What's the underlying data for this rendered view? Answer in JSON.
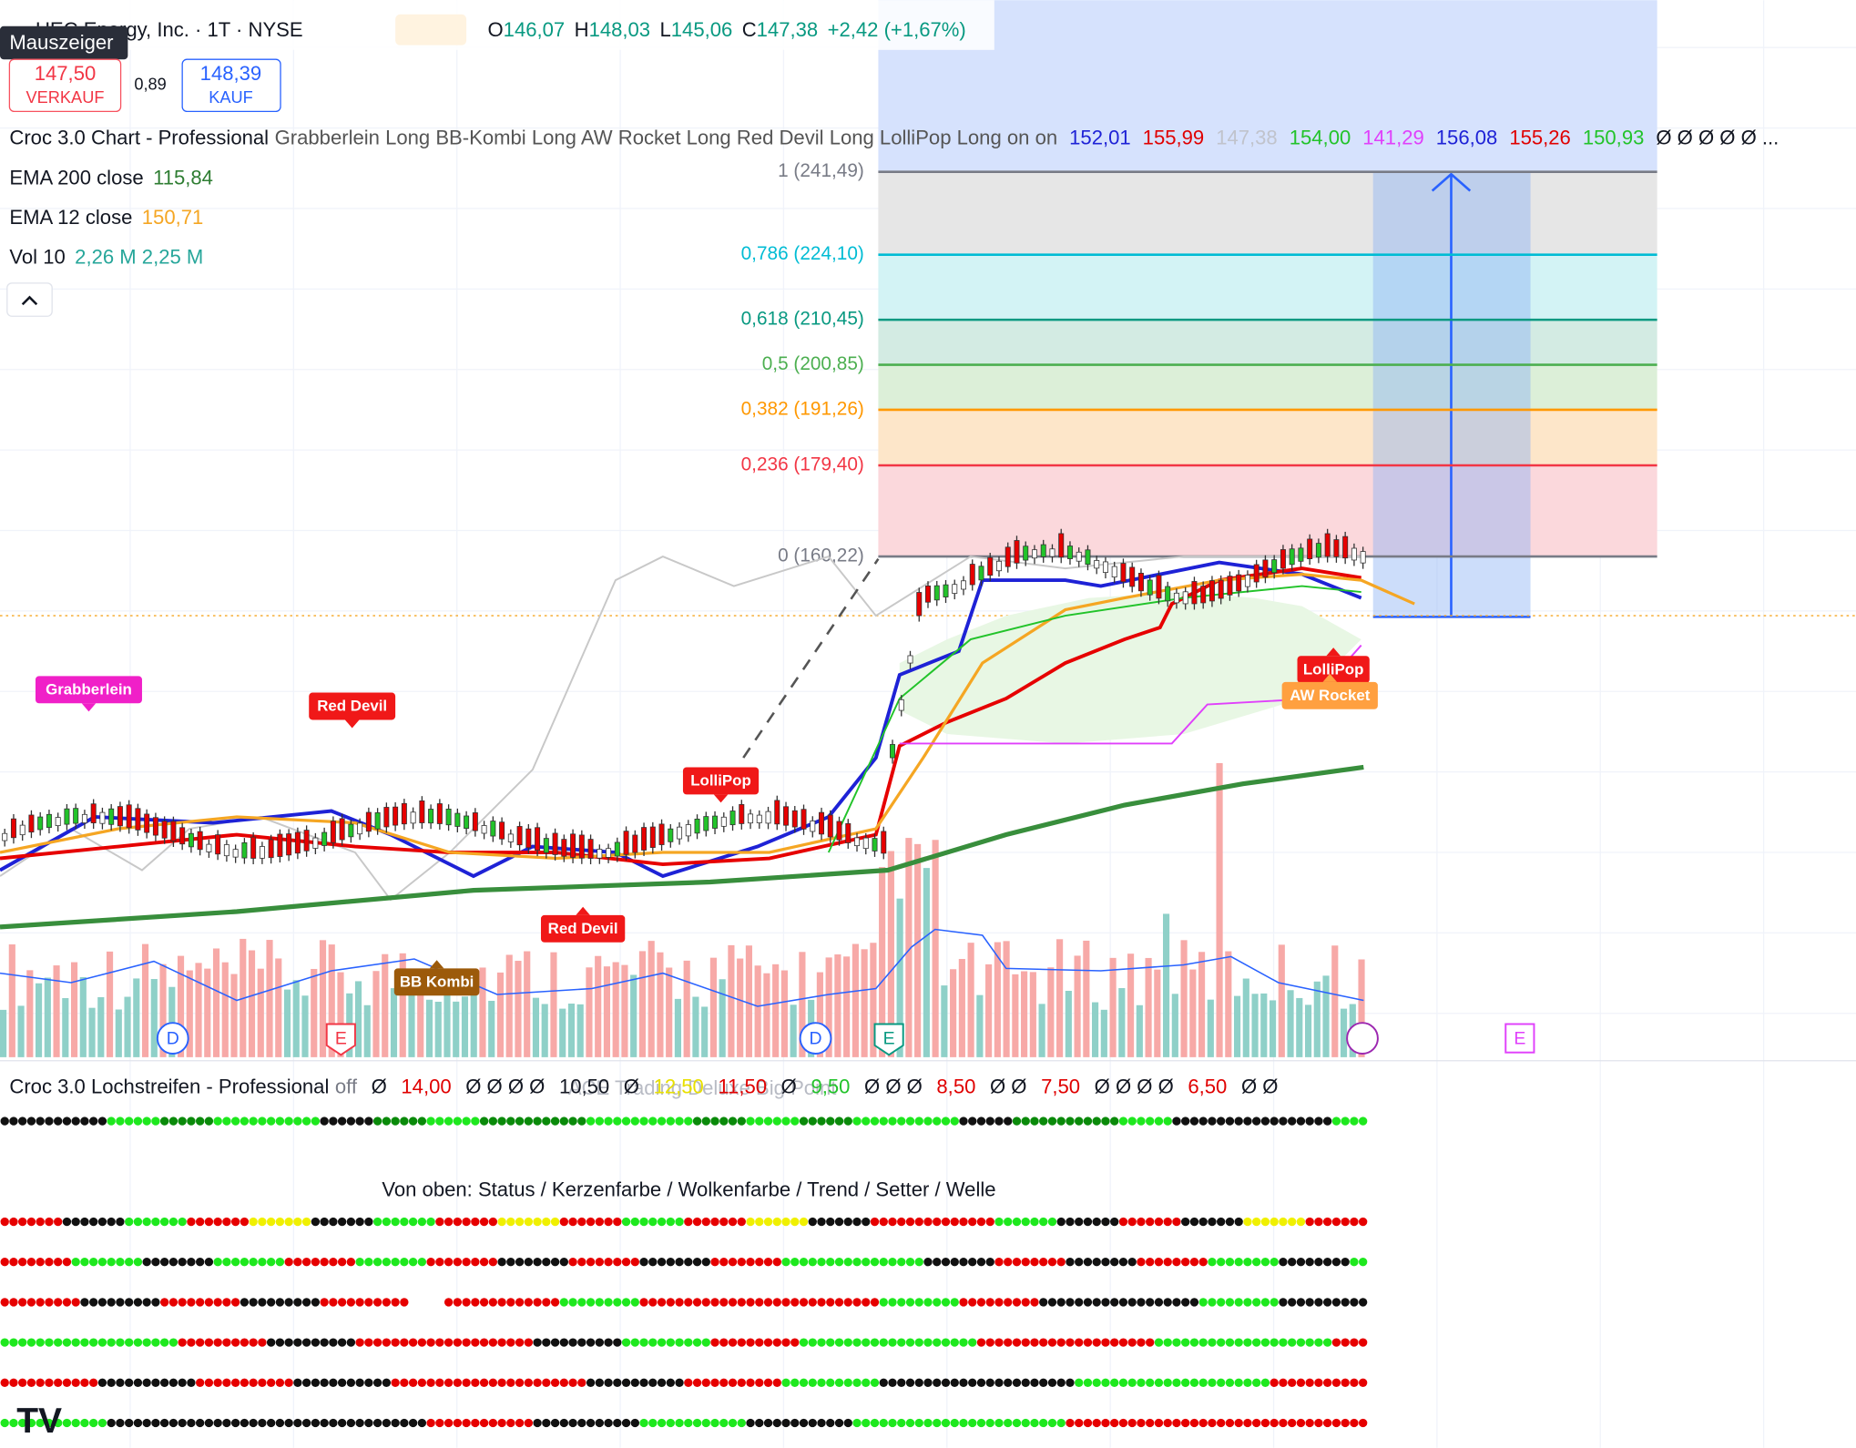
{
  "header": {
    "symbol": "UEC Energy, Inc. · 1T · NYSE",
    "ohlc": [
      {
        "label": "O",
        "value": "146,07"
      },
      {
        "label": "H",
        "value": "148,03"
      },
      {
        "label": "L",
        "value": "145,06"
      },
      {
        "label": "C",
        "value": "147,38"
      }
    ],
    "change": "+2,42 (+1,67%)",
    "sell_price": "147,50",
    "sell_label": "VERKAUF",
    "spread": "0,89",
    "buy_price": "148,39",
    "buy_label": "KAUF",
    "tooltip": "Mauszeiger"
  },
  "indicator": {
    "name": "Croc 3.0 Chart - Professional",
    "settings": "Grabberlein Long BB-Kombi Long AW Rocket Long Red Devil Long LolliPop Long on on",
    "values": [
      {
        "text": "152,01",
        "color": "#1e22d6"
      },
      {
        "text": "155,99",
        "color": "#e00000"
      },
      {
        "text": "147,38",
        "color": "#c0c3cc"
      },
      {
        "text": "154,00",
        "color": "#22c32a"
      },
      {
        "text": "141,29",
        "color": "#e040fb"
      },
      {
        "text": "156,08",
        "color": "#1e22d6"
      },
      {
        "text": "155,26",
        "color": "#e00000"
      },
      {
        "text": "150,93",
        "color": "#22c32a"
      },
      {
        "text": "Ø Ø Ø Ø Ø ...",
        "color": "#131722"
      }
    ]
  },
  "studies": [
    {
      "name": "EMA 200 close",
      "value": "115,84",
      "color": "#2e7d32"
    },
    {
      "name": "EMA 12 close",
      "value": "150,71",
      "color": "#f5a623"
    },
    {
      "name": "Vol 10",
      "value": "2,26 M  2,25 M",
      "color": "#26a69a"
    }
  ],
  "fib_levels": [
    {
      "label": "1 (241,49)",
      "color": "#787b86"
    },
    {
      "label": "0,786 (224,10)",
      "color": "#00bcd4"
    },
    {
      "label": "0,618 (210,45)",
      "color": "#089981"
    },
    {
      "label": "0,5 (200,85)",
      "color": "#4caf50"
    },
    {
      "label": "0,382 (191,26)",
      "color": "#ff9800"
    },
    {
      "label": "0,236 (179,40)",
      "color": "#f23645"
    },
    {
      "label": "0 (160,22)",
      "color": "#787b86"
    }
  ],
  "signals": [
    {
      "text": "Grabberlein",
      "color": "#f020c8"
    },
    {
      "text": "Red Devil",
      "color": "#f01818"
    },
    {
      "text": "LolliPop",
      "color": "#f01818"
    },
    {
      "text": "Red Devil",
      "color": "#f01818"
    },
    {
      "text": "BB Kombi",
      "color": "#9c5a0a"
    },
    {
      "text": "LolliPop",
      "color": "#f01818"
    },
    {
      "text": "AW Rocket",
      "color": "#ffa040"
    }
  ],
  "events": [
    "D",
    "E",
    "D",
    "E",
    "E"
  ],
  "lochstreifen": {
    "name": "Croc 3.0 Lochstreifen - Professional",
    "state": "off",
    "values": [
      {
        "text": "Ø",
        "color": "#131722"
      },
      {
        "text": "14,00",
        "color": "#e00000"
      },
      {
        "text": "Ø Ø Ø Ø",
        "color": "#131722"
      },
      {
        "text": "10,50",
        "color": "#131722"
      },
      {
        "text": "Ø",
        "color": "#131722"
      },
      {
        "text": "12,50",
        "color": "#e8e000"
      },
      {
        "text": "11,50",
        "color": "#e00000"
      },
      {
        "text": "Ø",
        "color": "#131722"
      },
      {
        "text": "9,50",
        "color": "#22c32a"
      },
      {
        "text": "Ø Ø Ø",
        "color": "#131722"
      },
      {
        "text": "8,50",
        "color": "#e00000"
      },
      {
        "text": "Ø Ø",
        "color": "#131722"
      },
      {
        "text": "7,50",
        "color": "#e00000"
      },
      {
        "text": "Ø Ø Ø Ø",
        "color": "#131722"
      },
      {
        "text": "6,50",
        "color": "#e00000"
      },
      {
        "text": "Ø Ø",
        "color": "#131722"
      }
    ],
    "watermark": "ACE Trading Deluxe Big Point",
    "legend": "Von oben: Status / Kerzenfarbe / Wolkenfarbe / Trend / Setter / Welle"
  }
}
